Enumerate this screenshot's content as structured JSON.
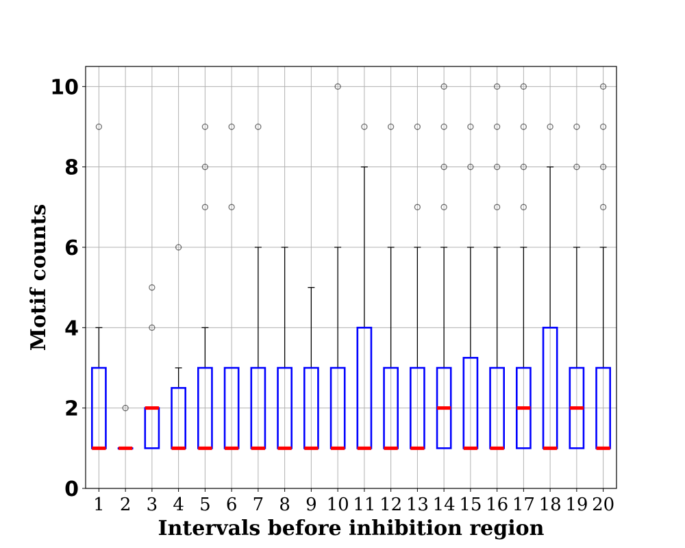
{
  "chart_data": {
    "type": "box",
    "xlabel": "Intervals before inhibition region",
    "ylabel": "Motif counts",
    "categories": [
      "1",
      "2",
      "3",
      "4",
      "5",
      "6",
      "7",
      "8",
      "9",
      "10",
      "11",
      "12",
      "13",
      "14",
      "15",
      "16",
      "17",
      "18",
      "19",
      "20"
    ],
    "ylim": [
      0,
      10.5
    ],
    "yticks": [
      "0",
      "2",
      "4",
      "6",
      "8",
      "10"
    ],
    "grid": true,
    "colors": {
      "box": "#0000ff",
      "median": "#ff0000",
      "whisker": "#000000",
      "flier": "#000000",
      "grid": "#b0b0b0"
    },
    "boxes": [
      {
        "q1": 1,
        "median": 1,
        "q3": 3,
        "whislo": 1,
        "whishi": 4,
        "fliers": [
          9
        ]
      },
      {
        "q1": 1,
        "median": 1,
        "q3": 1,
        "whislo": 1,
        "whishi": 1,
        "fliers": [
          2
        ]
      },
      {
        "q1": 1,
        "median": 2,
        "q3": 2,
        "whislo": 1,
        "whishi": 2,
        "fliers": [
          4,
          5
        ]
      },
      {
        "q1": 1,
        "median": 1,
        "q3": 2.5,
        "whislo": 1,
        "whishi": 3,
        "fliers": [
          6
        ]
      },
      {
        "q1": 1,
        "median": 1,
        "q3": 3,
        "whislo": 1,
        "whishi": 4,
        "fliers": [
          7,
          8,
          9
        ]
      },
      {
        "q1": 1,
        "median": 1,
        "q3": 3,
        "whislo": 1,
        "whishi": 3,
        "fliers": [
          7,
          9
        ]
      },
      {
        "q1": 1,
        "median": 1,
        "q3": 3,
        "whislo": 1,
        "whishi": 6,
        "fliers": [
          9
        ]
      },
      {
        "q1": 1,
        "median": 1,
        "q3": 3,
        "whislo": 1,
        "whishi": 6,
        "fliers": []
      },
      {
        "q1": 1,
        "median": 1,
        "q3": 3,
        "whislo": 1,
        "whishi": 5,
        "fliers": []
      },
      {
        "q1": 1,
        "median": 1,
        "q3": 3,
        "whislo": 1,
        "whishi": 6,
        "fliers": [
          10
        ]
      },
      {
        "q1": 1,
        "median": 1,
        "q3": 4,
        "whislo": 1,
        "whishi": 8,
        "fliers": [
          9
        ]
      },
      {
        "q1": 1,
        "median": 1,
        "q3": 3,
        "whislo": 1,
        "whishi": 6,
        "fliers": [
          9
        ]
      },
      {
        "q1": 1,
        "median": 1,
        "q3": 3,
        "whislo": 1,
        "whishi": 6,
        "fliers": [
          7,
          9
        ]
      },
      {
        "q1": 1,
        "median": 2,
        "q3": 3,
        "whislo": 1,
        "whishi": 6,
        "fliers": [
          7,
          8,
          9,
          10
        ]
      },
      {
        "q1": 1,
        "median": 1,
        "q3": 3.25,
        "whislo": 1,
        "whishi": 6,
        "fliers": [
          8,
          9
        ]
      },
      {
        "q1": 1,
        "median": 1,
        "q3": 3,
        "whislo": 1,
        "whishi": 6,
        "fliers": [
          7,
          8,
          9,
          10
        ]
      },
      {
        "q1": 1,
        "median": 2,
        "q3": 3,
        "whislo": 1,
        "whishi": 6,
        "fliers": [
          7,
          8,
          9,
          10
        ]
      },
      {
        "q1": 1,
        "median": 1,
        "q3": 4,
        "whislo": 1,
        "whishi": 8,
        "fliers": [
          9
        ]
      },
      {
        "q1": 1,
        "median": 2,
        "q3": 3,
        "whislo": 1,
        "whishi": 6,
        "fliers": [
          8,
          9
        ]
      },
      {
        "q1": 1,
        "median": 1,
        "q3": 3,
        "whislo": 1,
        "whishi": 6,
        "fliers": [
          7,
          8,
          9,
          10
        ]
      }
    ]
  }
}
